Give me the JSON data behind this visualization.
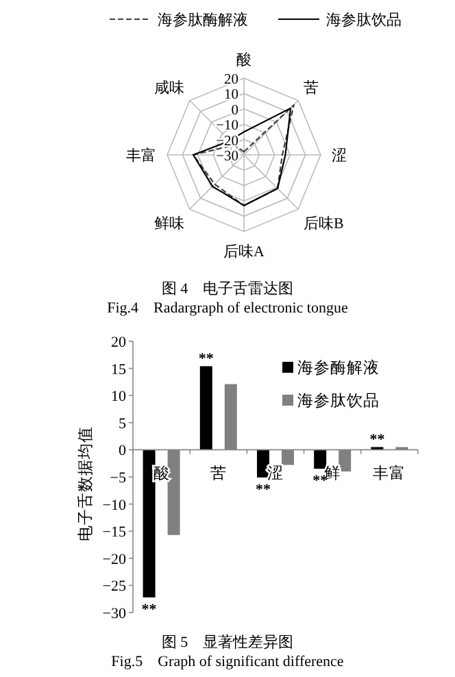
{
  "chart_data": [
    {
      "type": "radar",
      "categories": [
        "酸",
        "苦",
        "涩",
        "后味B",
        "后味A",
        "鲜味",
        "丰富",
        "咸味"
      ],
      "series": [
        {
          "name": "海参肽酶解液",
          "color": "#404040",
          "line_style": "dashed",
          "values": [
            -28,
            16,
            -5,
            1,
            3,
            -3,
            3,
            -21
          ]
        },
        {
          "name": "海参肽饮品",
          "color": "#000000",
          "line_style": "solid",
          "values": [
            -15,
            13,
            -3,
            1,
            3,
            -1,
            3,
            -17
          ]
        }
      ],
      "ylim": [
        -30,
        20
      ],
      "yticks": [
        -30,
        -20,
        -10,
        0,
        10,
        20
      ],
      "grid": true,
      "legend": "top",
      "marker": "none",
      "annotations": [
        "图 4　电子舌雷达图",
        "Fig.4　Radargraph of electronic tongue"
      ]
    },
    {
      "type": "bar",
      "categories": [
        "酸",
        "苦",
        "涩",
        "鲜",
        "丰富"
      ],
      "ylabel": "电子舌数据均值",
      "series": [
        {
          "name": "海参酶解液",
          "color": "#000000",
          "values": [
            -27.2,
            15.4,
            -5.1,
            -3.5,
            0.5
          ]
        },
        {
          "name": "海参肽饮品",
          "color": "#808080",
          "values": [
            -15.7,
            12.1,
            -2.8,
            -4.0,
            0.5
          ]
        }
      ],
      "ylim": [
        -30,
        20
      ],
      "yticks": [
        -30,
        -25,
        -20,
        -15,
        -10,
        -5,
        0,
        5,
        10,
        15,
        20
      ],
      "legend": "top right",
      "grid": false,
      "annotations": [
        {
          "text": "**",
          "x": "酸",
          "y": -27.2
        },
        {
          "text": "**",
          "x": "苦",
          "y": 15.4
        },
        {
          "text": "**",
          "x": "涩",
          "y": -5.1
        },
        {
          "text": "**",
          "x": "鲜",
          "y": -3.5
        },
        {
          "text": "**",
          "x": "丰富",
          "y": 0.5
        },
        "图 5　显著性差异图",
        "Fig.5　Graph of significant difference"
      ]
    }
  ]
}
